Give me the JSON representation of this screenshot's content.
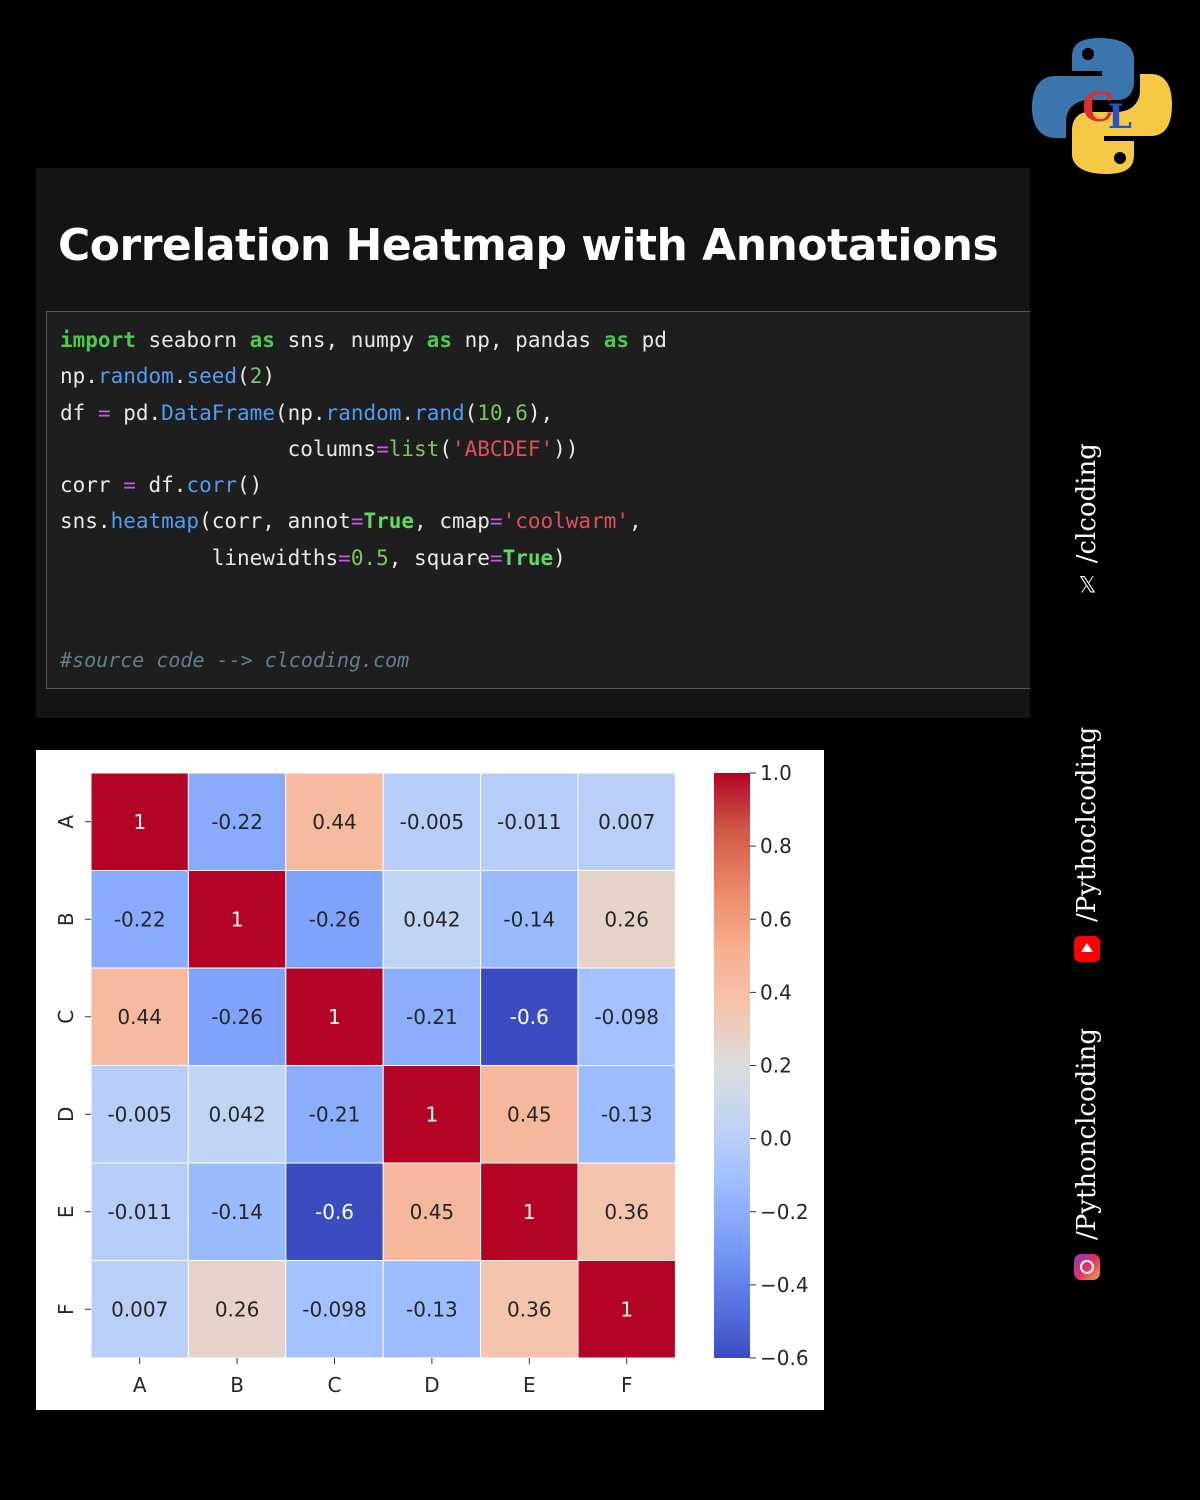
{
  "title": "Correlation Heatmap with Annotations",
  "code_lines": [
    "import seaborn as sns, numpy as np, pandas as pd",
    "np.random.seed(2)",
    "df = pd.DataFrame(np.random.rand(10,6),",
    "                  columns=list('ABCDEF'))",
    "corr = df.corr()",
    "sns.heatmap(corr, annot=True, cmap='coolwarm',",
    "            linewidths=0.5, square=True)"
  ],
  "comment": "#source code --> clcoding.com",
  "social": {
    "x_handle": "/clcoding",
    "youtube_handle": "/Pythoclcoding",
    "instagram_handle": "/Pythonclcoding"
  },
  "logo_text": "CL",
  "chart_data": {
    "type": "heatmap",
    "colormap": "coolwarm",
    "x_categories": [
      "A",
      "B",
      "C",
      "D",
      "E",
      "F"
    ],
    "y_categories": [
      "A",
      "B",
      "C",
      "D",
      "E",
      "F"
    ],
    "values": [
      [
        1,
        -0.22,
        0.44,
        -0.005,
        -0.011,
        0.007
      ],
      [
        -0.22,
        1,
        -0.26,
        0.042,
        -0.14,
        0.26
      ],
      [
        0.44,
        -0.26,
        1,
        -0.21,
        -0.6,
        -0.098
      ],
      [
        -0.005,
        0.042,
        -0.21,
        1,
        0.45,
        -0.13
      ],
      [
        -0.011,
        -0.14,
        -0.6,
        0.45,
        1,
        0.36
      ],
      [
        0.007,
        0.26,
        -0.098,
        -0.13,
        0.36,
        1
      ]
    ],
    "labels": [
      [
        "1",
        "-0.22",
        "0.44",
        "-0.005",
        "-0.011",
        "0.007"
      ],
      [
        "-0.22",
        "1",
        "-0.26",
        "0.042",
        "-0.14",
        "0.26"
      ],
      [
        "0.44",
        "-0.26",
        "1",
        "-0.21",
        "-0.6",
        "-0.098"
      ],
      [
        "-0.005",
        "0.042",
        "-0.21",
        "1",
        "0.45",
        "-0.13"
      ],
      [
        "-0.011",
        "-0.14",
        "-0.6",
        "0.45",
        "1",
        "0.36"
      ],
      [
        "0.007",
        "0.26",
        "-0.098",
        "-0.13",
        "0.36",
        "1"
      ]
    ],
    "colorbar_range": [
      -0.6,
      1.0
    ],
    "colorbar_ticks": [
      "1.0",
      "0.8",
      "0.6",
      "0.4",
      "0.2",
      "0.0",
      "−0.2",
      "−0.4",
      "−0.6"
    ],
    "colorbar_tick_values": [
      1.0,
      0.8,
      0.6,
      0.4,
      0.2,
      0.0,
      -0.2,
      -0.4,
      -0.6
    ]
  }
}
